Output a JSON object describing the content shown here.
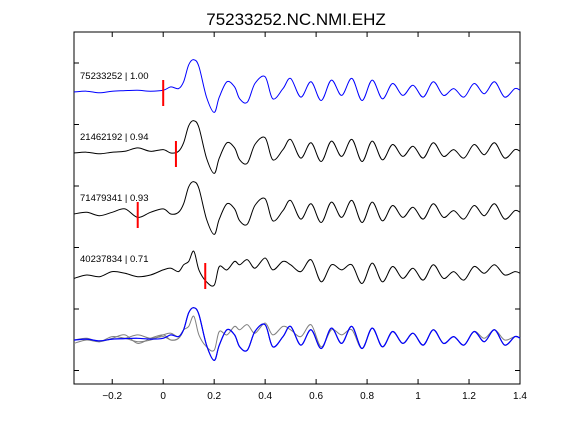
{
  "chart_data": {
    "type": "line",
    "title": "75233252.NC.NMI.EHZ",
    "xlabel": "",
    "ylabel": "",
    "xlim": [
      -0.35,
      1.4
    ],
    "xticks": [
      -0.2,
      0,
      0.2,
      0.4,
      0.6,
      0.8,
      1,
      1.2,
      1.4
    ],
    "xtick_labels": [
      "−0.2",
      "0",
      "0.2",
      "0.4",
      "0.6",
      "0.8",
      "1",
      "1.2",
      "1.4"
    ],
    "grid": false,
    "legend": "none",
    "colors": {
      "reference": "#0000ff",
      "match": "#000000",
      "overlay": "#808080",
      "pick": "#ff0000"
    },
    "traces": [
      {
        "label": "75233252 | 1.00",
        "color": "#0000ff",
        "pick": 0.0,
        "x": [
          -0.35,
          -0.3,
          -0.25,
          -0.2,
          -0.15,
          -0.1,
          -0.05,
          0.0,
          0.03,
          0.06,
          0.08,
          0.1,
          0.12,
          0.14,
          0.17,
          0.2,
          0.22,
          0.25,
          0.28,
          0.3,
          0.33,
          0.36,
          0.4,
          0.43,
          0.47,
          0.5,
          0.54,
          0.58,
          0.62,
          0.66,
          0.7,
          0.74,
          0.78,
          0.82,
          0.86,
          0.9,
          0.94,
          0.98,
          1.02,
          1.06,
          1.1,
          1.14,
          1.18,
          1.22,
          1.26,
          1.3,
          1.34,
          1.38,
          1.4
        ],
        "y": [
          0.0,
          0.05,
          -0.05,
          0.05,
          0.08,
          0.1,
          0.05,
          0.1,
          0.3,
          0.2,
          0.6,
          1.6,
          1.9,
          1.5,
          -0.3,
          -1.2,
          -0.3,
          0.6,
          0.3,
          -0.4,
          -0.6,
          0.5,
          0.9,
          -0.4,
          0.2,
          0.8,
          -0.3,
          0.6,
          -0.5,
          0.7,
          -0.2,
          0.8,
          -0.5,
          0.7,
          -0.4,
          0.5,
          -0.2,
          0.4,
          -0.3,
          0.6,
          -0.2,
          0.2,
          -0.3,
          0.5,
          -0.1,
          0.6,
          -0.3,
          0.2,
          0.1
        ]
      },
      {
        "label": "21462192 | 0.94",
        "color": "#000000",
        "pick": 0.05,
        "x": [
          -0.35,
          -0.3,
          -0.25,
          -0.2,
          -0.15,
          -0.1,
          -0.05,
          0.0,
          0.03,
          0.06,
          0.08,
          0.1,
          0.12,
          0.14,
          0.17,
          0.2,
          0.22,
          0.25,
          0.28,
          0.3,
          0.33,
          0.36,
          0.4,
          0.43,
          0.47,
          0.5,
          0.54,
          0.58,
          0.62,
          0.66,
          0.7,
          0.74,
          0.78,
          0.82,
          0.86,
          0.9,
          0.94,
          0.98,
          1.02,
          1.06,
          1.1,
          1.14,
          1.18,
          1.22,
          1.26,
          1.3,
          1.34,
          1.38,
          1.4
        ],
        "y": [
          0.0,
          0.05,
          -0.05,
          0.05,
          0.1,
          0.3,
          0.1,
          0.2,
          0.0,
          0.1,
          0.6,
          1.6,
          1.9,
          1.5,
          -0.3,
          -1.2,
          -0.3,
          0.6,
          0.3,
          -0.4,
          -0.6,
          0.5,
          0.9,
          -0.4,
          0.2,
          0.8,
          -0.3,
          0.6,
          -0.5,
          0.7,
          -0.2,
          0.8,
          -0.5,
          0.7,
          -0.4,
          0.5,
          -0.2,
          0.4,
          -0.3,
          0.6,
          -0.2,
          0.2,
          -0.3,
          0.5,
          -0.1,
          0.6,
          -0.3,
          0.2,
          0.1
        ]
      },
      {
        "label": "71479341 | 0.93",
        "color": "#000000",
        "pick": -0.1,
        "x": [
          -0.35,
          -0.3,
          -0.25,
          -0.2,
          -0.15,
          -0.1,
          -0.05,
          0.0,
          0.03,
          0.06,
          0.08,
          0.1,
          0.12,
          0.14,
          0.17,
          0.2,
          0.22,
          0.25,
          0.28,
          0.3,
          0.33,
          0.36,
          0.4,
          0.43,
          0.47,
          0.5,
          0.54,
          0.58,
          0.62,
          0.66,
          0.7,
          0.74,
          0.78,
          0.82,
          0.86,
          0.9,
          0.94,
          0.98,
          1.02,
          1.06,
          1.1,
          1.14,
          1.18,
          1.22,
          1.26,
          1.3,
          1.34,
          1.38,
          1.4
        ],
        "y": [
          0.0,
          0.1,
          -0.1,
          0.1,
          0.3,
          -0.2,
          0.1,
          0.3,
          0.0,
          0.1,
          0.6,
          1.6,
          1.9,
          1.5,
          -0.3,
          -1.2,
          -0.3,
          0.6,
          0.3,
          -0.4,
          -0.6,
          0.5,
          0.9,
          -0.4,
          0.2,
          0.8,
          -0.3,
          0.6,
          -0.5,
          0.7,
          -0.2,
          0.8,
          -0.5,
          0.7,
          -0.4,
          0.5,
          -0.2,
          0.4,
          -0.3,
          0.6,
          -0.2,
          0.2,
          -0.3,
          0.5,
          -0.1,
          0.6,
          -0.3,
          0.2,
          0.1
        ]
      },
      {
        "label": "40237834 | 0.71",
        "color": "#000000",
        "pick": 0.165,
        "x": [
          -0.35,
          -0.3,
          -0.25,
          -0.2,
          -0.15,
          -0.1,
          -0.05,
          0.0,
          0.03,
          0.06,
          0.08,
          0.1,
          0.12,
          0.14,
          0.17,
          0.2,
          0.22,
          0.25,
          0.28,
          0.3,
          0.33,
          0.36,
          0.4,
          0.43,
          0.47,
          0.5,
          0.54,
          0.58,
          0.62,
          0.66,
          0.7,
          0.74,
          0.78,
          0.82,
          0.86,
          0.9,
          0.94,
          0.98,
          1.02,
          1.06,
          1.1,
          1.14,
          1.18,
          1.22,
          1.26,
          1.3,
          1.34,
          1.38,
          1.4
        ],
        "y": [
          -0.2,
          0.0,
          -0.1,
          0.2,
          0.1,
          -0.1,
          0.0,
          0.3,
          0.4,
          0.2,
          0.6,
          0.8,
          1.4,
          0.3,
          -0.4,
          -0.6,
          0.5,
          0.3,
          0.8,
          0.6,
          0.9,
          0.4,
          1.0,
          0.3,
          0.8,
          0.6,
          0.2,
          0.9,
          -0.4,
          0.6,
          0.3,
          0.6,
          -0.5,
          0.7,
          -0.4,
          0.5,
          -0.2,
          0.4,
          -0.3,
          0.6,
          -0.2,
          0.2,
          -0.3,
          0.5,
          0.1,
          0.6,
          0.0,
          0.2,
          0.1
        ]
      }
    ],
    "overlay": {
      "description_series": "all traces overlaid",
      "x": [
        -0.35,
        -0.3,
        -0.25,
        -0.2,
        -0.15,
        -0.1,
        -0.05,
        0.0,
        0.03,
        0.06,
        0.08,
        0.1,
        0.12,
        0.14,
        0.17,
        0.2,
        0.22,
        0.25,
        0.28,
        0.3,
        0.33,
        0.36,
        0.4,
        0.43,
        0.47,
        0.5,
        0.54,
        0.58,
        0.62,
        0.66,
        0.7,
        0.74,
        0.78,
        0.82,
        0.86,
        0.9,
        0.94,
        0.98,
        1.02,
        1.06,
        1.1,
        1.14,
        1.18,
        1.22,
        1.26,
        1.3,
        1.34,
        1.38,
        1.4
      ]
    }
  }
}
